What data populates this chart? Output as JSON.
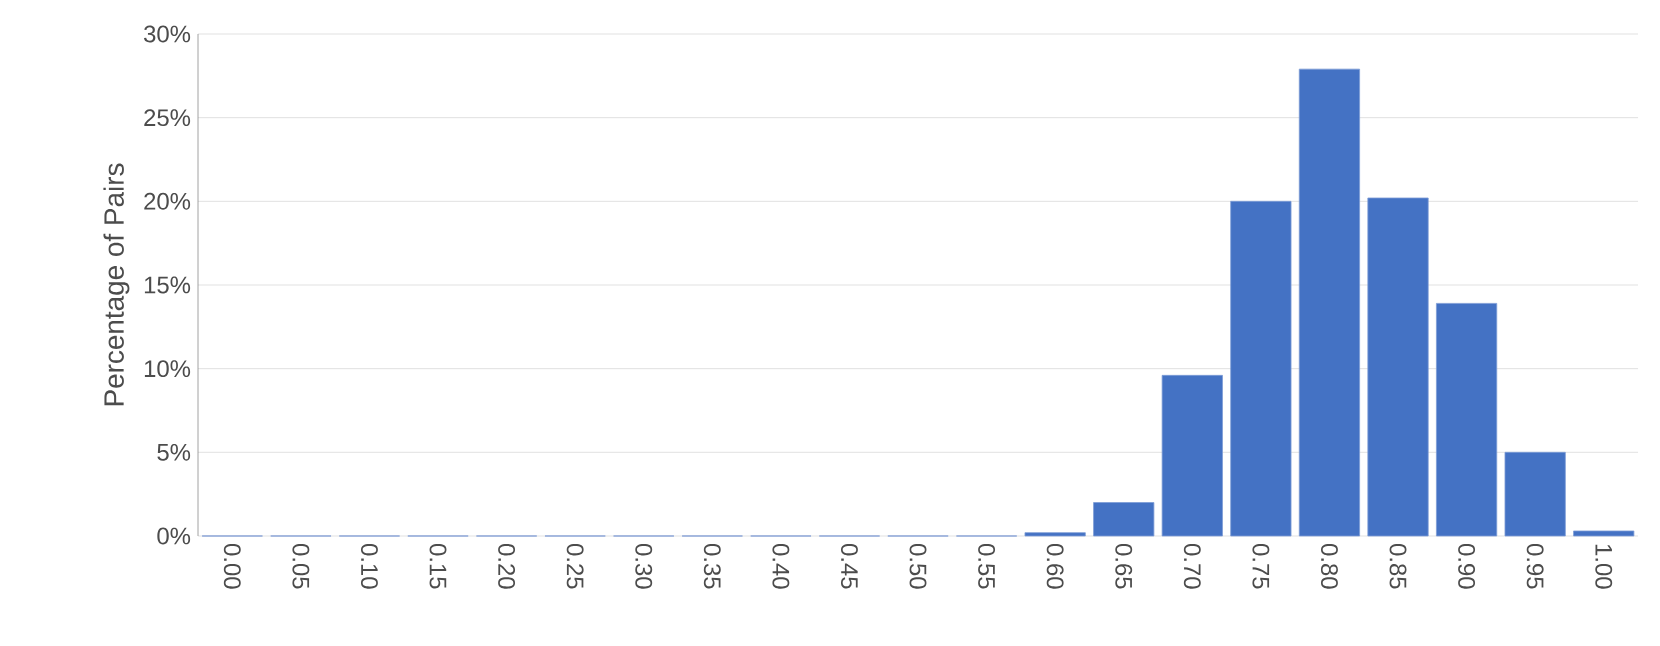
{
  "chart_data": {
    "type": "bar",
    "ylabel": "Percentage of Pairs",
    "categories": [
      "0.00",
      "0.05",
      "0.10",
      "0.15",
      "0.20",
      "0.25",
      "0.30",
      "0.35",
      "0.40",
      "0.45",
      "0.50",
      "0.55",
      "0.60",
      "0.65",
      "0.70",
      "0.75",
      "0.80",
      "0.85",
      "0.90",
      "0.95",
      "1.00"
    ],
    "values": [
      0,
      0,
      0,
      0,
      0,
      0,
      0,
      0,
      0,
      0,
      0,
      0,
      0.2,
      2.0,
      9.6,
      20.0,
      27.9,
      20.2,
      13.9,
      5.0,
      0.3
    ],
    "color": "#4472c4",
    "ylim": [
      0,
      30
    ],
    "yticks": [
      {
        "value": 0,
        "label": "0%"
      },
      {
        "value": 5,
        "label": "5%"
      },
      {
        "value": 10,
        "label": "10%"
      },
      {
        "value": 15,
        "label": "15%"
      },
      {
        "value": 20,
        "label": "20%"
      },
      {
        "value": 25,
        "label": "25%"
      },
      {
        "value": 30,
        "label": "30%"
      }
    ],
    "grid": "y"
  }
}
